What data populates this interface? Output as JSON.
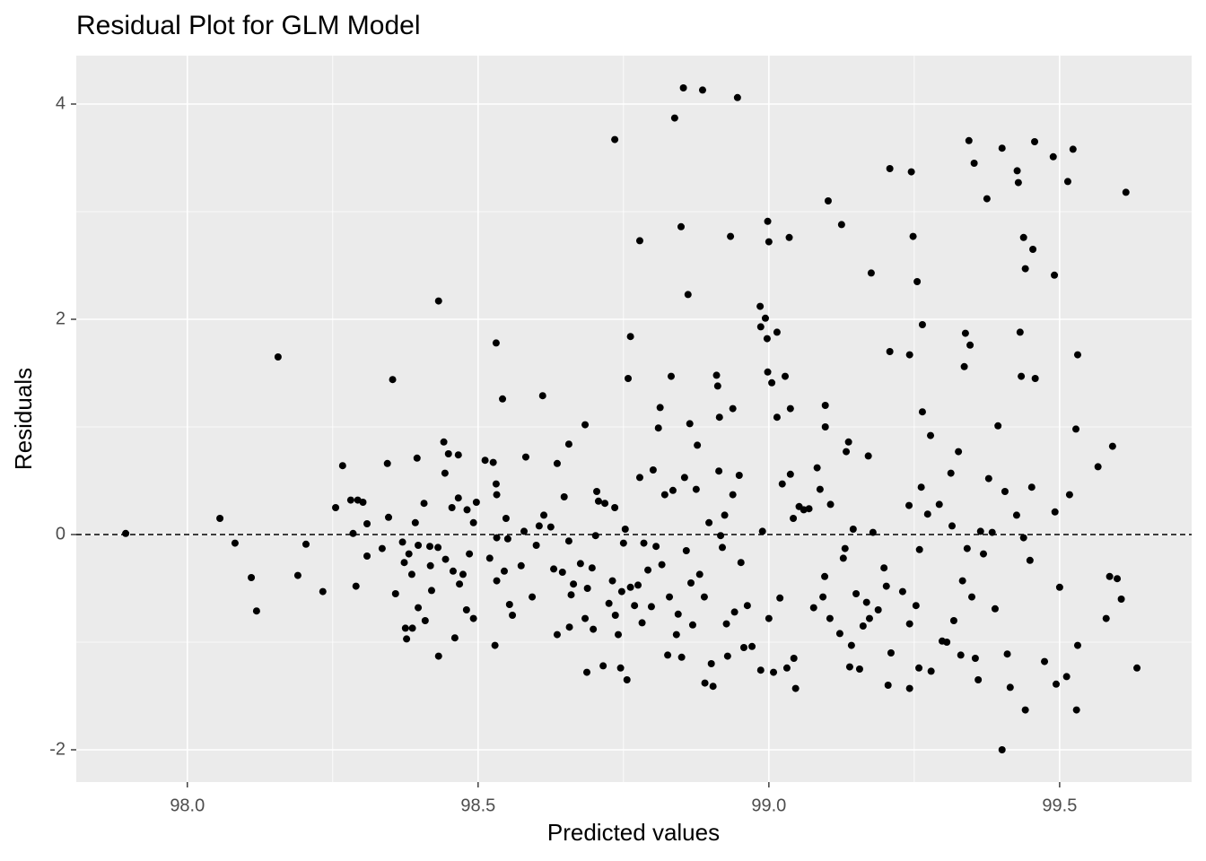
{
  "chart_data": {
    "type": "scatter",
    "title": "Residual Plot for GLM Model",
    "x_label": "Predicted values",
    "y_label": "Residuals",
    "xlim": [
      97.809,
      99.727
    ],
    "ylim": [
      -2.3,
      4.45
    ],
    "xticks": [
      {
        "value": 98.0,
        "label": "98.0"
      },
      {
        "value": 98.5,
        "label": "98.5"
      },
      {
        "value": 99.0,
        "label": "99.0"
      },
      {
        "value": 99.5,
        "label": "99.5"
      }
    ],
    "yticks": [
      -2,
      0,
      2,
      4
    ],
    "grid": true,
    "hline": 0,
    "color": "#000000",
    "x": [
      97.894,
      98.056,
      98.082,
      98.11,
      98.119,
      98.156,
      98.19,
      98.204,
      98.233,
      98.255,
      98.267,
      98.281,
      98.285,
      98.29,
      98.293,
      98.302,
      98.309,
      98.309,
      98.335,
      98.344,
      98.346,
      98.353,
      98.358,
      98.37,
      98.373,
      98.375,
      98.377,
      98.381,
      98.386,
      98.387,
      98.392,
      98.395,
      98.397,
      98.397,
      98.407,
      98.409,
      98.417,
      98.418,
      98.42,
      98.431,
      98.432,
      98.432,
      98.441,
      98.443,
      98.444,
      98.449,
      98.455,
      98.457,
      98.46,
      98.466,
      98.466,
      98.468,
      98.474,
      98.48,
      98.481,
      98.485,
      98.492,
      98.492,
      98.497,
      98.512,
      98.52,
      98.526,
      98.529,
      98.531,
      98.531,
      98.532,
      98.532,
      98.532,
      98.542,
      98.545,
      98.548,
      98.551,
      98.554,
      98.559,
      98.574,
      98.579,
      98.582,
      98.593,
      98.6,
      98.605,
      98.611,
      98.613,
      98.625,
      98.63,
      98.636,
      98.636,
      98.645,
      98.648,
      98.656,
      98.656,
      98.657,
      98.66,
      98.664,
      98.676,
      98.684,
      98.684,
      98.687,
      98.688,
      98.696,
      98.698,
      98.702,
      98.704,
      98.707,
      98.715,
      98.718,
      98.725,
      98.731,
      98.735,
      98.735,
      98.736,
      98.741,
      98.745,
      98.747,
      98.75,
      98.753,
      98.756,
      98.758,
      98.762,
      98.762,
      98.769,
      98.775,
      98.778,
      98.778,
      98.782,
      98.785,
      98.792,
      98.798,
      98.801,
      98.806,
      98.81,
      98.813,
      98.816,
      98.821,
      98.826,
      98.829,
      98.832,
      98.835,
      98.838,
      98.841,
      98.844,
      98.849,
      98.85,
      98.853,
      98.855,
      98.858,
      98.861,
      98.864,
      98.866,
      98.869,
      98.875,
      98.877,
      98.881,
      98.886,
      98.889,
      98.89,
      98.897,
      98.901,
      98.904,
      98.91,
      98.912,
      98.914,
      98.915,
      98.917,
      98.92,
      98.924,
      98.927,
      98.929,
      98.934,
      98.938,
      98.938,
      98.941,
      98.946,
      98.949,
      98.952,
      98.957,
      98.963,
      98.971,
      98.985,
      98.986,
      98.986,
      98.989,
      98.994,
      98.997,
      98.998,
      98.998,
      99.0,
      99.0,
      99.005,
      99.008,
      99.014,
      99.014,
      99.019,
      99.023,
      99.028,
      99.031,
      99.035,
      99.037,
      99.037,
      99.042,
      99.043,
      99.046,
      99.052,
      99.06,
      99.069,
      99.077,
      99.083,
      99.088,
      99.093,
      99.096,
      99.097,
      99.097,
      99.102,
      99.105,
      99.106,
      99.122,
      99.125,
      99.128,
      99.131,
      99.133,
      99.137,
      99.139,
      99.142,
      99.145,
      99.15,
      99.156,
      99.162,
      99.168,
      99.171,
      99.173,
      99.176,
      99.179,
      99.188,
      99.198,
      99.202,
      99.205,
      99.208,
      99.208,
      99.21,
      99.23,
      99.241,
      99.242,
      99.242,
      99.242,
      99.245,
      99.248,
      99.253,
      99.255,
      99.258,
      99.259,
      99.262,
      99.264,
      99.264,
      99.273,
      99.278,
      99.279,
      99.293,
      99.298,
      99.306,
      99.313,
      99.315,
      99.318,
      99.326,
      99.33,
      99.333,
      99.336,
      99.338,
      99.341,
      99.344,
      99.346,
      99.349,
      99.353,
      99.355,
      99.36,
      99.364,
      99.369,
      99.375,
      99.378,
      99.384,
      99.389,
      99.394,
      99.401,
      99.401,
      99.406,
      99.41,
      99.415,
      99.426,
      99.427,
      99.429,
      99.432,
      99.434,
      99.438,
      99.438,
      99.441,
      99.441,
      99.449,
      99.452,
      99.454,
      99.457,
      99.458,
      99.474,
      99.489,
      99.491,
      99.492,
      99.494,
      99.5,
      99.512,
      99.514,
      99.517,
      99.523,
      99.528,
      99.529,
      99.531,
      99.531,
      99.566,
      99.58,
      99.586,
      99.591,
      99.599,
      99.606,
      99.614,
      99.633
    ],
    "y": [
      0.01,
      0.15,
      -0.08,
      -0.4,
      -0.71,
      1.65,
      -0.38,
      -0.09,
      -0.53,
      0.25,
      0.64,
      0.32,
      0.01,
      -0.48,
      0.32,
      0.3,
      0.1,
      -0.2,
      -0.13,
      0.66,
      0.16,
      1.44,
      -0.55,
      -0.07,
      -0.26,
      -0.87,
      -0.97,
      -0.18,
      -0.37,
      -0.87,
      0.11,
      0.71,
      -0.1,
      -0.68,
      0.29,
      -0.8,
      -0.11,
      -0.29,
      -0.52,
      -0.12,
      2.17,
      -1.13,
      0.86,
      0.57,
      -0.23,
      0.75,
      0.25,
      -0.34,
      -0.96,
      0.74,
      0.34,
      -0.46,
      -0.37,
      -0.7,
      0.23,
      -0.18,
      0.11,
      -0.78,
      0.3,
      0.69,
      -0.22,
      0.67,
      -1.03,
      1.78,
      0.47,
      0.37,
      -0.03,
      -0.43,
      1.26,
      -0.34,
      0.15,
      -0.04,
      -0.65,
      -0.75,
      -0.29,
      0.03,
      0.72,
      -0.58,
      -0.1,
      0.08,
      1.29,
      0.18,
      0.07,
      -0.32,
      0.66,
      -0.93,
      -0.35,
      0.35,
      -0.06,
      0.84,
      -0.86,
      -0.56,
      -0.46,
      -0.27,
      1.02,
      -0.78,
      -1.28,
      -0.5,
      -0.31,
      -0.88,
      -0.01,
      0.4,
      0.31,
      -1.22,
      0.29,
      -0.64,
      -0.43,
      3.67,
      0.25,
      -0.75,
      -0.93,
      -1.24,
      -0.53,
      -0.08,
      0.05,
      -1.35,
      1.45,
      1.84,
      -0.49,
      -0.66,
      -0.47,
      2.73,
      0.53,
      -0.82,
      -0.08,
      -0.33,
      -0.67,
      0.6,
      -0.11,
      0.99,
      1.18,
      -0.28,
      0.37,
      -1.12,
      -0.58,
      1.47,
      0.41,
      3.87,
      -0.93,
      -0.74,
      2.86,
      -1.14,
      4.15,
      0.53,
      -0.15,
      2.23,
      1.03,
      -0.45,
      -0.84,
      0.42,
      0.83,
      -0.37,
      4.13,
      -0.58,
      -1.38,
      0.11,
      -1.2,
      -1.41,
      1.48,
      1.38,
      0.59,
      1.09,
      -0.01,
      -0.12,
      0.18,
      -0.83,
      -1.13,
      2.77,
      1.17,
      0.37,
      -0.72,
      4.06,
      0.55,
      -0.26,
      -1.05,
      -0.66,
      -1.04,
      2.12,
      1.93,
      -1.26,
      0.03,
      2.01,
      1.82,
      2.91,
      1.51,
      2.72,
      -0.78,
      1.41,
      -1.28,
      1.88,
      1.09,
      -0.59,
      0.47,
      1.47,
      -1.24,
      2.76,
      1.17,
      0.56,
      0.15,
      -1.15,
      -1.43,
      0.26,
      0.23,
      0.24,
      -0.68,
      0.62,
      0.42,
      -0.58,
      -0.39,
      1.2,
      1.0,
      3.1,
      -0.78,
      0.28,
      -0.92,
      2.88,
      -0.22,
      -0.13,
      0.77,
      0.86,
      -1.23,
      -1.03,
      0.05,
      -0.55,
      -1.25,
      -0.85,
      -0.63,
      0.73,
      -0.78,
      2.43,
      0.02,
      -0.7,
      -0.31,
      -0.48,
      -1.4,
      3.4,
      1.7,
      -1.1,
      -0.53,
      0.27,
      1.67,
      -0.83,
      -1.43,
      3.37,
      2.77,
      -0.66,
      2.35,
      -1.24,
      -0.14,
      0.44,
      1.95,
      1.14,
      0.19,
      0.92,
      -1.27,
      0.28,
      -0.99,
      -1.0,
      0.57,
      0.08,
      -0.8,
      0.77,
      -1.12,
      -0.43,
      1.56,
      1.87,
      -0.13,
      3.66,
      1.76,
      -0.58,
      3.45,
      -1.15,
      -1.35,
      0.03,
      -0.18,
      3.12,
      0.52,
      0.02,
      -0.69,
      1.01,
      3.59,
      -2.0,
      0.4,
      -1.11,
      -1.42,
      0.18,
      3.38,
      3.27,
      1.88,
      1.47,
      -0.03,
      2.76,
      2.47,
      -1.63,
      -0.24,
      0.44,
      2.65,
      3.65,
      1.45,
      -1.18,
      3.51,
      2.41,
      0.21,
      -1.39,
      -0.49,
      -1.32,
      3.28,
      0.37,
      3.58,
      0.98,
      -1.63,
      1.67,
      -1.03,
      0.63,
      -0.78,
      -0.39,
      0.82,
      -0.41,
      -0.6,
      3.18,
      -1.24
    ]
  }
}
